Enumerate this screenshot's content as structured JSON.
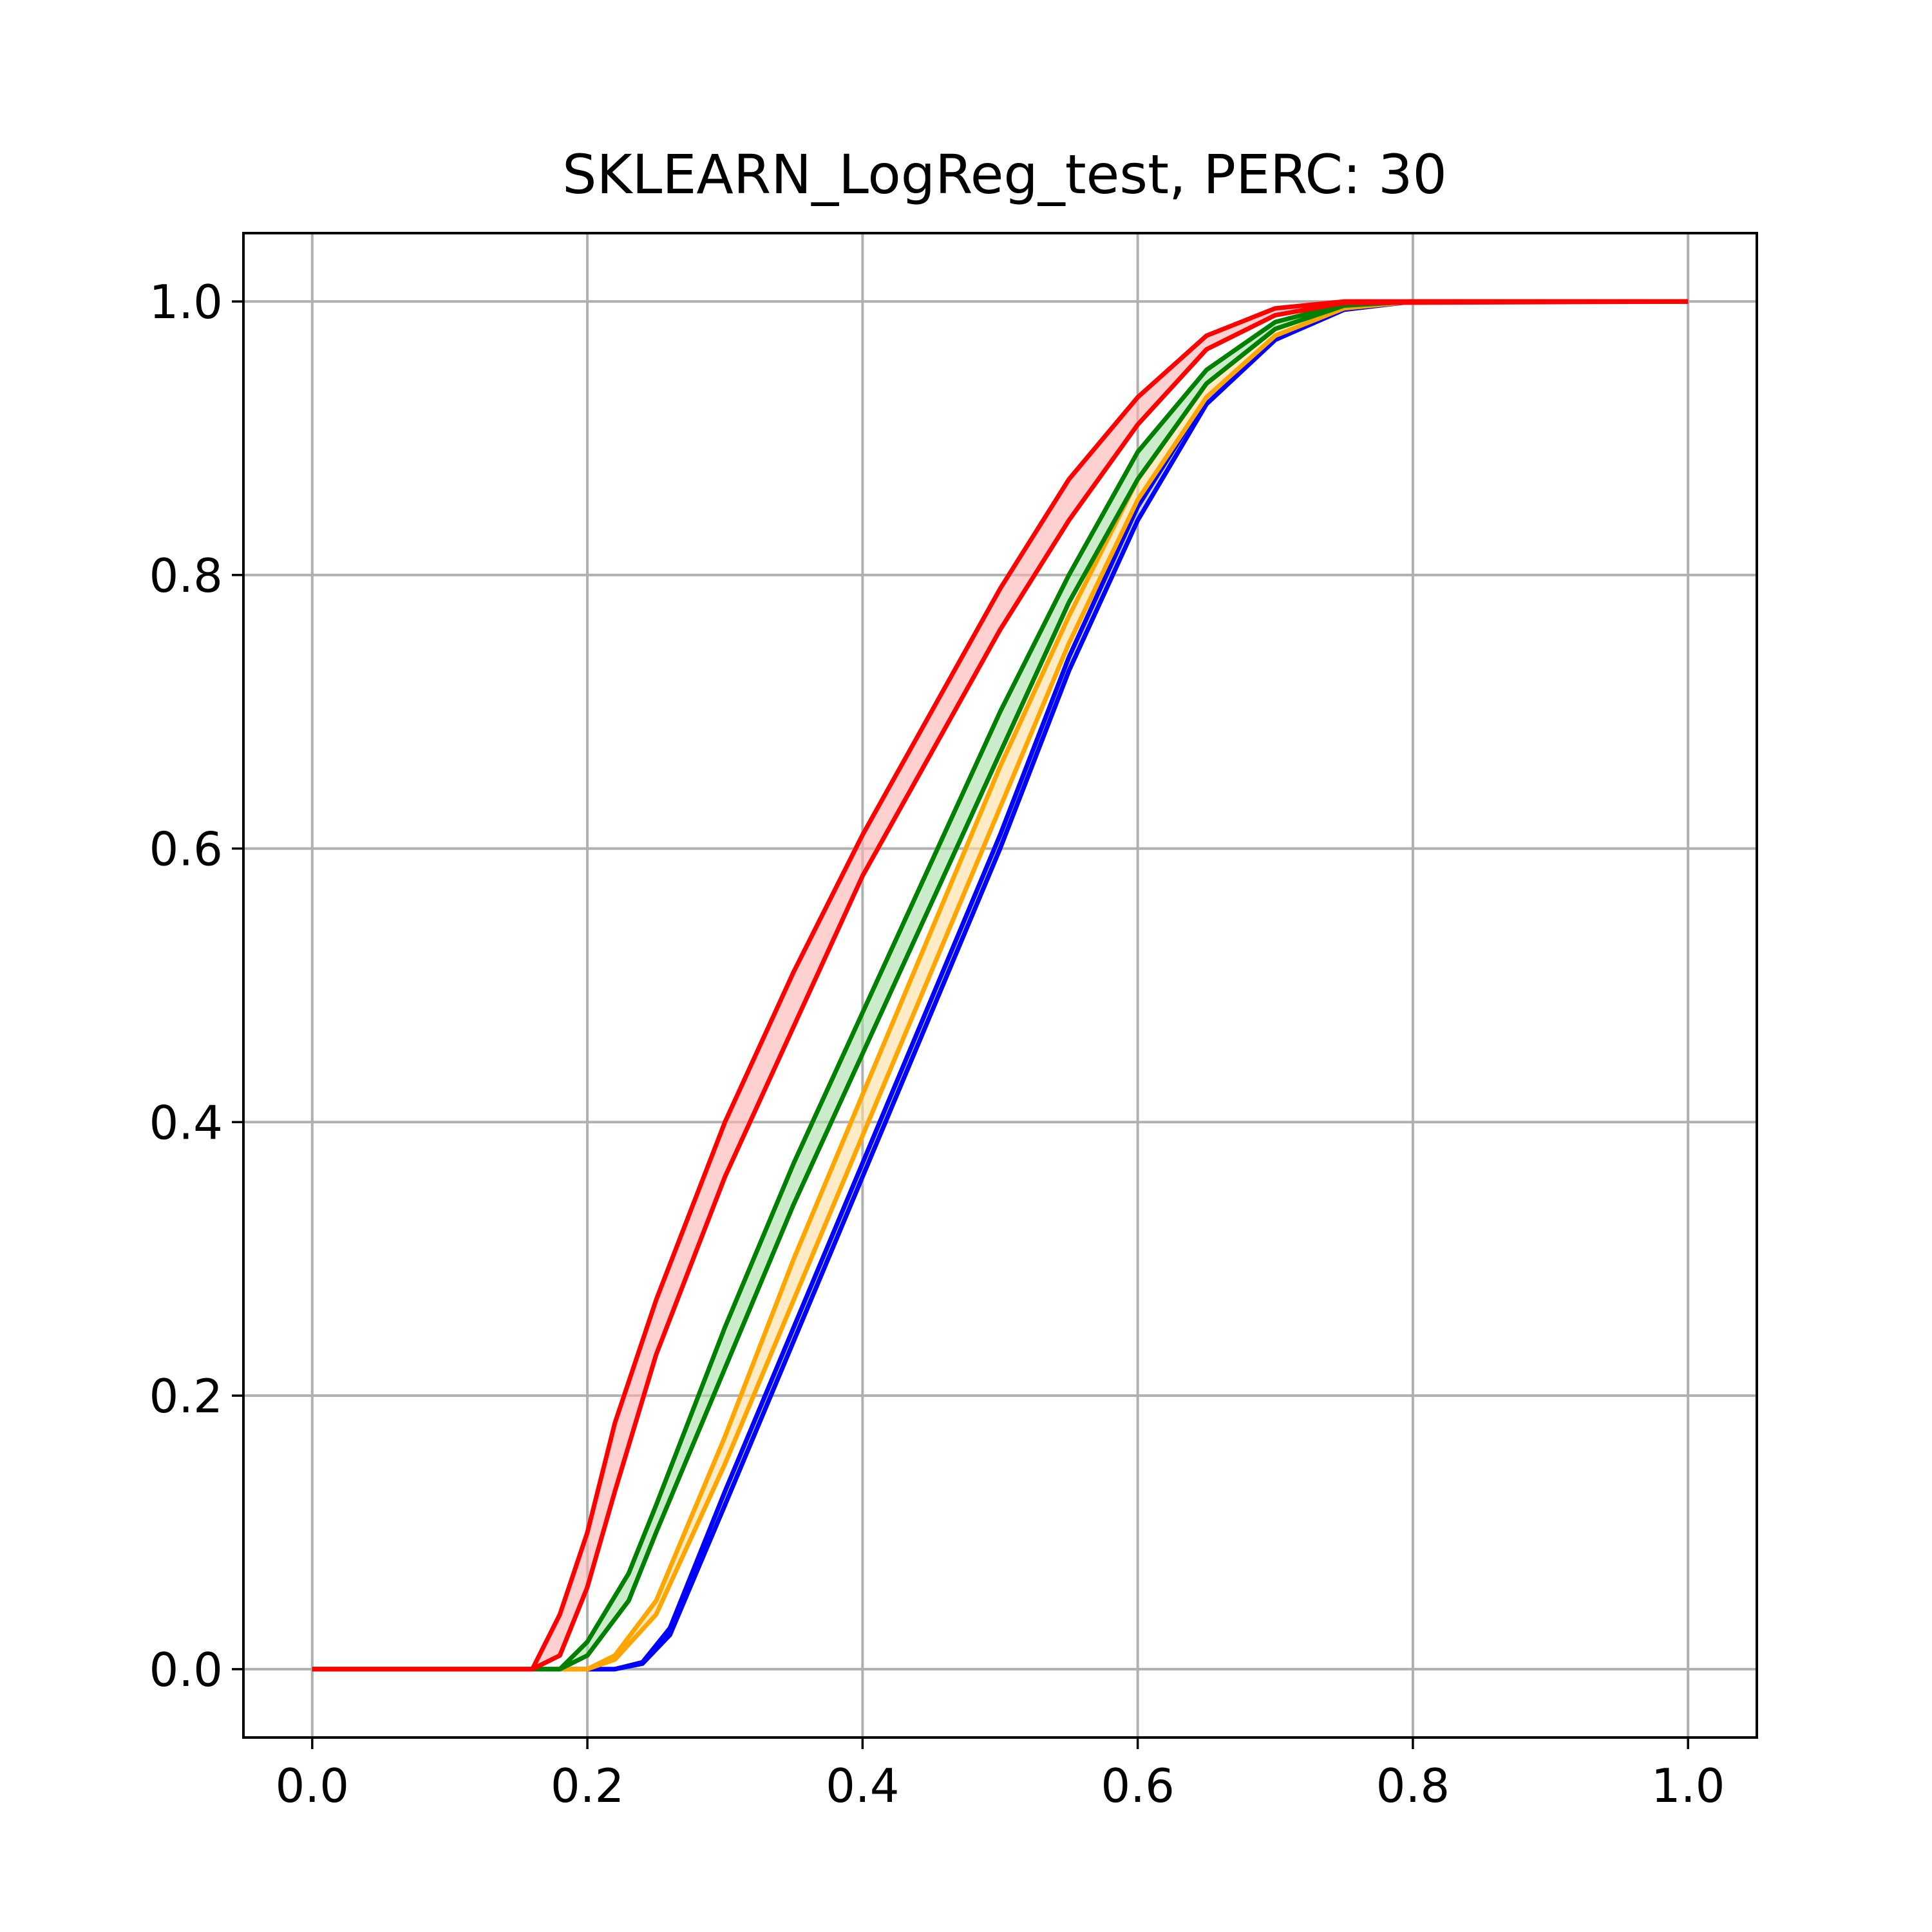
{
  "chart_data": {
    "type": "line",
    "title": "SKLEARN_LogReg_test, PERC: 30",
    "xlabel": "",
    "ylabel": "",
    "xlim": [
      -0.05,
      1.05
    ],
    "ylim": [
      -0.05,
      1.05
    ],
    "xticks": [
      "0.0",
      "0.2",
      "0.4",
      "0.6",
      "0.8",
      "1.0"
    ],
    "yticks": [
      "0.0",
      "0.2",
      "0.4",
      "0.6",
      "0.8",
      "1.0"
    ],
    "grid": true,
    "legend": "none",
    "series": [
      {
        "color": "#0000ff",
        "band_color": "#aab4ff",
        "x": [
          0.0,
          0.22,
          0.24,
          0.26,
          0.3,
          0.35,
          0.4,
          0.45,
          0.5,
          0.55,
          0.6,
          0.65,
          0.7,
          0.75,
          0.8,
          0.83,
          1.0
        ],
        "upper": [
          0.0,
          0.0,
          0.005,
          0.03,
          0.13,
          0.25,
          0.37,
          0.49,
          0.61,
          0.74,
          0.85,
          0.93,
          0.975,
          0.995,
          1.0,
          1.0,
          1.0
        ],
        "lower": [
          0.0,
          0.0,
          0.004,
          0.025,
          0.12,
          0.24,
          0.36,
          0.48,
          0.6,
          0.73,
          0.84,
          0.925,
          0.972,
          0.994,
          1.0,
          1.0,
          1.0
        ]
      },
      {
        "color": "#ffa500",
        "band_color": "#ffe0a0",
        "x": [
          0.0,
          0.2,
          0.22,
          0.25,
          0.3,
          0.35,
          0.4,
          0.45,
          0.5,
          0.55,
          0.6,
          0.65,
          0.7,
          0.75,
          0.8,
          1.0
        ],
        "upper": [
          0.0,
          0.0,
          0.01,
          0.05,
          0.17,
          0.3,
          0.42,
          0.54,
          0.66,
          0.77,
          0.87,
          0.94,
          0.98,
          0.997,
          1.0,
          1.0
        ],
        "lower": [
          0.0,
          0.0,
          0.007,
          0.04,
          0.15,
          0.27,
          0.39,
          0.51,
          0.63,
          0.75,
          0.855,
          0.93,
          0.975,
          0.995,
          1.0,
          1.0
        ]
      },
      {
        "color": "#008000",
        "band_color": "#a8e0a8",
        "x": [
          0.0,
          0.18,
          0.2,
          0.23,
          0.25,
          0.3,
          0.35,
          0.4,
          0.45,
          0.5,
          0.55,
          0.6,
          0.65,
          0.7,
          0.75,
          0.8,
          1.0
        ],
        "upper": [
          0.0,
          0.0,
          0.02,
          0.07,
          0.12,
          0.25,
          0.37,
          0.48,
          0.59,
          0.7,
          0.8,
          0.89,
          0.95,
          0.985,
          0.998,
          1.0,
          1.0
        ],
        "lower": [
          0.0,
          0.0,
          0.01,
          0.05,
          0.1,
          0.22,
          0.34,
          0.45,
          0.56,
          0.67,
          0.78,
          0.87,
          0.94,
          0.98,
          0.997,
          1.0,
          1.0
        ]
      },
      {
        "color": "#ff0000",
        "band_color": "#ffb0b0",
        "x": [
          0.0,
          0.16,
          0.18,
          0.2,
          0.22,
          0.25,
          0.3,
          0.35,
          0.4,
          0.45,
          0.5,
          0.55,
          0.6,
          0.65,
          0.7,
          0.75,
          1.0
        ],
        "upper": [
          0.0,
          0.0,
          0.04,
          0.1,
          0.18,
          0.27,
          0.4,
          0.51,
          0.61,
          0.7,
          0.79,
          0.87,
          0.93,
          0.975,
          0.995,
          1.0,
          1.0
        ],
        "lower": [
          0.0,
          0.0,
          0.01,
          0.06,
          0.13,
          0.23,
          0.36,
          0.47,
          0.58,
          0.67,
          0.76,
          0.84,
          0.91,
          0.965,
          0.99,
          0.999,
          1.0
        ]
      }
    ]
  }
}
